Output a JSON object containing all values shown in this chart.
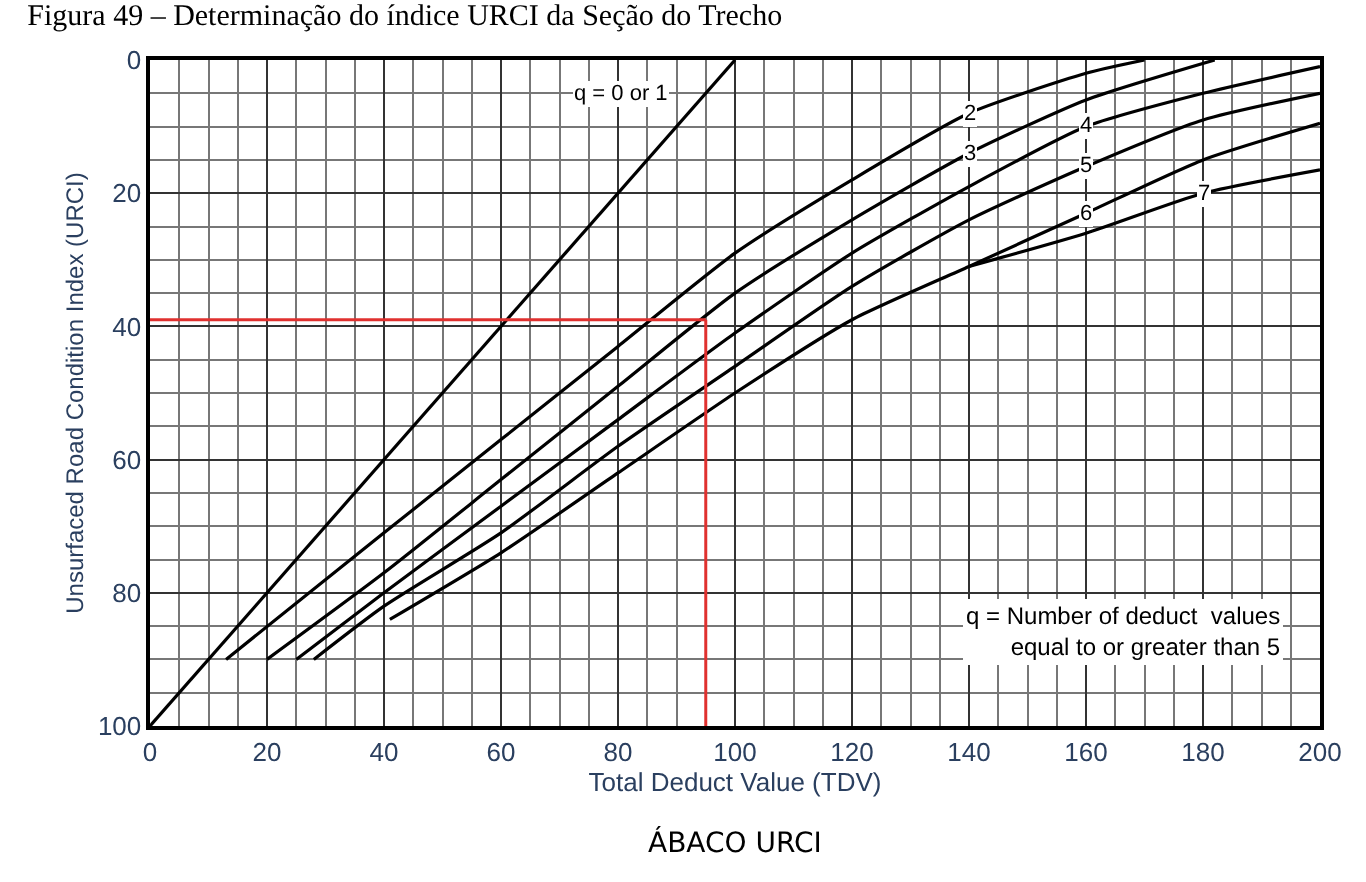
{
  "chart_data": {
    "type": "line",
    "title": "Figura 49 – Determinação do índice URCI da Seção do Trecho",
    "xlabel": "Total Deduct Value (TDV)",
    "ylabel": "Unsurfaced Road Condition Index (URCI)",
    "xlim": [
      0,
      200
    ],
    "xticks": [
      0,
      20,
      40,
      60,
      80,
      100,
      120,
      140,
      160,
      180,
      200
    ],
    "ylim": [
      100,
      0
    ],
    "yticks": [
      0,
      20,
      40,
      60,
      80,
      100
    ],
    "grid": true,
    "marker": "none",
    "line_style": "solid",
    "series": [
      {
        "name": "q = 0 or 1",
        "color": "#000000",
        "x": [
          0,
          100
        ],
        "values": [
          100,
          0
        ]
      },
      {
        "name": "2",
        "color": "#000000",
        "x": [
          13,
          40,
          60,
          80,
          100,
          120,
          140,
          160,
          170
        ],
        "values": [
          90,
          71,
          57,
          43,
          29,
          18,
          8,
          2,
          0
        ]
      },
      {
        "name": "3",
        "color": "#000000",
        "x": [
          20,
          40,
          60,
          80,
          100,
          120,
          140,
          160,
          182
        ],
        "values": [
          90,
          77,
          63,
          49,
          35,
          24,
          14,
          6,
          0
        ]
      },
      {
        "name": "4",
        "color": "#000000",
        "x": [
          25,
          40,
          60,
          80,
          100,
          120,
          140,
          160,
          180,
          200
        ],
        "values": [
          90,
          80,
          67,
          54,
          41,
          29,
          19,
          10,
          5,
          1
        ]
      },
      {
        "name": "5",
        "color": "#000000",
        "x": [
          28,
          40,
          60,
          80,
          100,
          120,
          140,
          160,
          180,
          200
        ],
        "values": [
          90,
          82,
          71,
          58,
          46,
          34,
          24,
          16,
          9,
          5
        ]
      },
      {
        "name": "6",
        "color": "#000000",
        "x": [
          41,
          60,
          80,
          100,
          120,
          140,
          160,
          180,
          200
        ],
        "values": [
          84,
          74,
          62,
          50,
          39,
          31,
          23,
          15,
          9.5
        ]
      },
      {
        "name": "7",
        "color": "#000000",
        "x": [
          140,
          160,
          180,
          200
        ],
        "values": [
          31,
          26,
          20,
          16.5
        ]
      }
    ],
    "ref_lines": [
      {
        "axis": "x",
        "value": 95,
        "color": "#e0312f"
      },
      {
        "axis": "y",
        "value": 39,
        "color": "#e0312f"
      }
    ],
    "annotations": [
      "q = Number of deduct  values\nequal to or greater than 5",
      "ÁBACO URCI"
    ]
  }
}
